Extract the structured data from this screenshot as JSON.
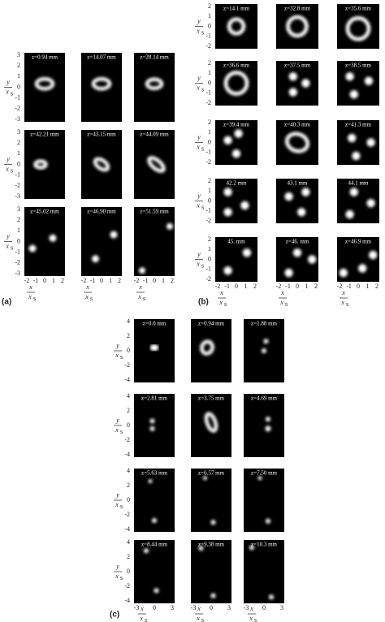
{
  "figure": {
    "panels": [
      {
        "label": "(a)",
        "frames": [
          "z=0.94 mm",
          "z=14.07 mm",
          "z=28.14 mm",
          "z=42.21 mm",
          "z=43.15 mm",
          "z=44.09 mm",
          "z=45.02 mm",
          "z=46.90 mm",
          "z=51.59 mm"
        ],
        "yticks": [
          "3",
          "2",
          "1",
          "0",
          "-1",
          "-2",
          "-3"
        ],
        "xticks": [
          "-2",
          "-1",
          "0",
          "1",
          "2"
        ],
        "ylabel": {
          "num": "y",
          "den": "x",
          "sub": "s"
        },
        "xlabel": {
          "num": "x",
          "den": "x",
          "sub": "s"
        }
      },
      {
        "label": "(b)",
        "frames": [
          "z=14.1 mm",
          "z=32.8 mm",
          "z=35.6 mm",
          "z=36.6 mm",
          "z=37.5 mm",
          "z=38.5 mm",
          "z=39.4 mm",
          "z=40.3 mm",
          "z=41.3 mm",
          "42.2 mm",
          "43.1 mm",
          "44.1 mm",
          "45. mm",
          "z=46. mm",
          "z=46.9 mm"
        ],
        "yticks": [
          "2",
          "1",
          "0",
          "-1",
          "-2"
        ],
        "xticks": [
          "-2",
          "-1",
          "0",
          "1",
          "2"
        ],
        "ylabel": {
          "num": "y",
          "den": "x",
          "sub": "s"
        },
        "xlabel": {
          "num": "x",
          "den": "x",
          "sub": "s"
        }
      },
      {
        "label": "(c)",
        "frames": [
          "z=0.0 mm",
          "z=0.94 mm",
          "z=1.88 mm",
          "z=2.81 mm",
          "z=3.75 mm",
          "z=4.69 mm",
          "z=5.63 mm",
          "z=6.57 mm",
          "z=7.50 mm",
          "z=8.44 mm",
          "z=9.38 mm",
          "z=10.3 mm"
        ],
        "yticks": [
          "4",
          "2",
          "0",
          "-2",
          "-4"
        ],
        "xticks": [
          "-3",
          "0",
          "3"
        ],
        "ylabel": {
          "num": "y",
          "den": "x",
          "sub": "s"
        },
        "xlabel": {
          "num": "x",
          "den": "x",
          "sub": "s"
        }
      }
    ]
  }
}
